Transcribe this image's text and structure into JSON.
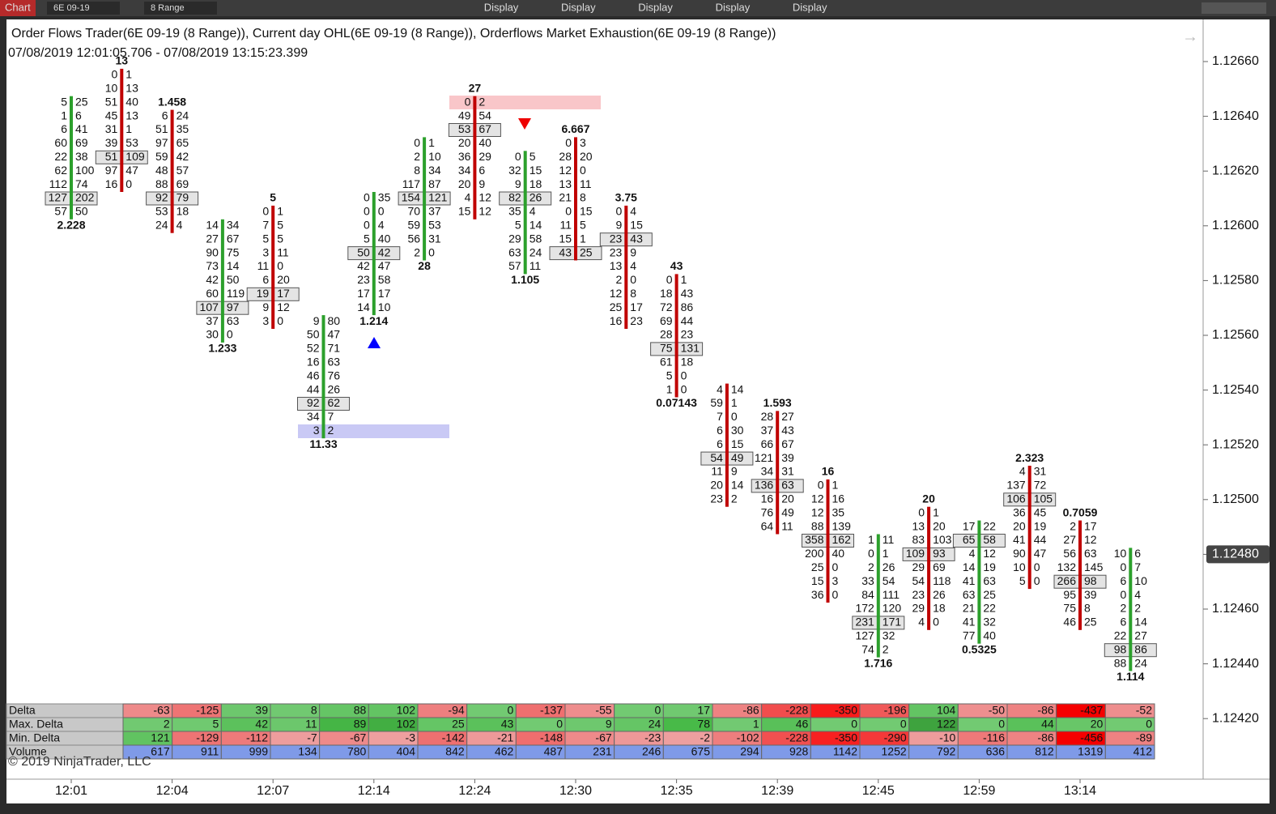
{
  "toolbar": {
    "app": "Chart",
    "instrument": "6E 09-19",
    "bar_type": "8 Range",
    "buttons": [
      "Display",
      "Display",
      "Display",
      "Display",
      "Display"
    ]
  },
  "header": {
    "title": "Order Flows Trader(6E 09-19 (8 Range)), Current day OHL(6E 09-19 (8 Range)),  Orderflows Market Exhaustion(6E 09-19 (8 Range))",
    "range": "07/08/2019 12:01:05.706 - 07/08/2019 13:15:23.399"
  },
  "chart_data": {
    "type": "footprint",
    "ylim": [
      1.124,
      1.1268
    ],
    "yticks": [
      {
        "value": 1.1266,
        "label": "1.12660"
      },
      {
        "value": 1.1264,
        "label": "1.12640"
      },
      {
        "value": 1.1262,
        "label": "1.12620"
      },
      {
        "value": 1.126,
        "label": "1.12600"
      },
      {
        "value": 1.1258,
        "label": "1.12580"
      },
      {
        "value": 1.1256,
        "label": "1.12560"
      },
      {
        "value": 1.1254,
        "label": "1.12540"
      },
      {
        "value": 1.1252,
        "label": "1.12520"
      },
      {
        "value": 1.125,
        "label": "1.12500"
      },
      {
        "value": 1.1248,
        "label": "1.12480"
      },
      {
        "value": 1.1246,
        "label": "1.12460"
      },
      {
        "value": 1.1244,
        "label": "1.12440"
      },
      {
        "value": 1.1242,
        "label": "1.12420"
      }
    ],
    "last_price": {
      "value": 1.1248,
      "label": "1.12480"
    },
    "categories": [
      "12:01",
      null,
      "12:04",
      null,
      "12:07",
      null,
      "12:14",
      null,
      "12:24",
      null,
      "12:30",
      null,
      "12:35",
      null,
      "12:39",
      null,
      "12:45",
      null,
      "12:59",
      null,
      "13:14",
      null
    ],
    "bars": [
      {
        "top_price": 1.12645,
        "color": "#2ca02c",
        "poc": 7,
        "bottom_label": "2.228",
        "rows": [
          [
            5,
            25
          ],
          [
            1,
            6
          ],
          [
            6,
            41
          ],
          [
            60,
            69
          ],
          [
            22,
            38
          ],
          [
            62,
            100
          ],
          [
            112,
            74
          ],
          [
            127,
            202
          ],
          [
            57,
            50
          ]
        ]
      },
      {
        "top_price": 1.12655,
        "color": "#c00000",
        "poc": 6,
        "top_label": "13",
        "rows": [
          [
            0,
            1
          ],
          [
            10,
            13
          ],
          [
            51,
            40
          ],
          [
            45,
            13
          ],
          [
            31,
            1
          ],
          [
            39,
            53
          ],
          [
            51,
            109
          ],
          [
            97,
            47
          ],
          [
            16,
            0
          ]
        ]
      },
      {
        "top_price": 1.1264,
        "color": "#c00000",
        "poc": 6,
        "top_label": "1.458",
        "rows": [
          [
            6,
            24
          ],
          [
            51,
            35
          ],
          [
            97,
            65
          ],
          [
            59,
            42
          ],
          [
            48,
            57
          ],
          [
            88,
            69
          ],
          [
            92,
            79
          ],
          [
            53,
            18
          ],
          [
            24,
            4
          ]
        ]
      },
      {
        "top_price": 1.126,
        "color": "#2ca02c",
        "poc": 6,
        "bottom_label": "1.233",
        "rows": [
          [
            14,
            34
          ],
          [
            27,
            67
          ],
          [
            90,
            75
          ],
          [
            73,
            14
          ],
          [
            42,
            50
          ],
          [
            60,
            119
          ],
          [
            107,
            97
          ],
          [
            37,
            63
          ],
          [
            30,
            0
          ]
        ]
      },
      {
        "top_price": 1.12605,
        "color": "#c00000",
        "poc": 6,
        "top_label": "5",
        "rows": [
          [
            0,
            1
          ],
          [
            7,
            5
          ],
          [
            5,
            5
          ],
          [
            3,
            11
          ],
          [
            11,
            0
          ],
          [
            6,
            20
          ],
          [
            19,
            17
          ],
          [
            9,
            12
          ],
          [
            3,
            0
          ]
        ]
      },
      {
        "top_price": 1.12565,
        "color": "#2ca02c",
        "poc": 6,
        "bottom_label": "11.33",
        "rows": [
          [
            9,
            80
          ],
          [
            50,
            47
          ],
          [
            52,
            71
          ],
          [
            16,
            63
          ],
          [
            46,
            76
          ],
          [
            44,
            26
          ],
          [
            92,
            62
          ],
          [
            34,
            7
          ],
          [
            3,
            2
          ]
        ]
      },
      {
        "top_price": 1.1261,
        "color": "#2ca02c",
        "poc": 4,
        "bottom_label": "1.214",
        "rows": [
          [
            0,
            35
          ],
          [
            0,
            0
          ],
          [
            0,
            4
          ],
          [
            5,
            40
          ],
          [
            50,
            42
          ],
          [
            42,
            47
          ],
          [
            23,
            58
          ],
          [
            17,
            17
          ],
          [
            14,
            10
          ]
        ]
      },
      {
        "top_price": 1.1263,
        "color": "#2ca02c",
        "poc": 4,
        "bottom_label": "28",
        "rows": [
          [
            0,
            1
          ],
          [
            2,
            10
          ],
          [
            8,
            34
          ],
          [
            117,
            87
          ],
          [
            154,
            121
          ],
          [
            70,
            37
          ],
          [
            59,
            53
          ],
          [
            56,
            31
          ],
          [
            2,
            0
          ]
        ]
      },
      {
        "top_price": 1.12645,
        "color": "#c00000",
        "poc": 2,
        "top_label": "27",
        "rows": [
          [
            0,
            2
          ],
          [
            49,
            54
          ],
          [
            53,
            67
          ],
          [
            20,
            40
          ],
          [
            36,
            29
          ],
          [
            34,
            6
          ],
          [
            20,
            9
          ],
          [
            4,
            12
          ],
          [
            15,
            12
          ]
        ]
      },
      {
        "top_price": 1.12625,
        "color": "#2ca02c",
        "poc": 3,
        "bottom_label": "1.105",
        "rows": [
          [
            0,
            5
          ],
          [
            32,
            15
          ],
          [
            9,
            18
          ],
          [
            82,
            26
          ],
          [
            35,
            4
          ],
          [
            5,
            14
          ],
          [
            29,
            58
          ],
          [
            63,
            24
          ],
          [
            57,
            11
          ]
        ]
      },
      {
        "top_price": 1.1263,
        "color": "#c00000",
        "poc": 8,
        "top_label": "6.667",
        "rows": [
          [
            0,
            3
          ],
          [
            28,
            20
          ],
          [
            12,
            0
          ],
          [
            13,
            11
          ],
          [
            21,
            8
          ],
          [
            0,
            15
          ],
          [
            11,
            5
          ],
          [
            15,
            1
          ],
          [
            43,
            25
          ]
        ]
      },
      {
        "top_price": 1.12605,
        "color": "#c00000",
        "poc": 2,
        "top_label": "3.75",
        "rows": [
          [
            0,
            4
          ],
          [
            9,
            15
          ],
          [
            23,
            43
          ],
          [
            23,
            9
          ],
          [
            13,
            4
          ],
          [
            2,
            0
          ],
          [
            12,
            8
          ],
          [
            25,
            17
          ],
          [
            16,
            23
          ]
        ]
      },
      {
        "top_price": 1.1258,
        "color": "#c00000",
        "poc": 5,
        "top_label": "43",
        "bottom_label": "0.07143",
        "rows": [
          [
            0,
            1
          ],
          [
            18,
            43
          ],
          [
            72,
            86
          ],
          [
            69,
            44
          ],
          [
            28,
            23
          ],
          [
            75,
            131
          ],
          [
            61,
            18
          ],
          [
            5,
            0
          ],
          [
            1,
            0
          ]
        ]
      },
      {
        "top_price": 1.1254,
        "color": "#c00000",
        "poc": 5,
        "rows": [
          [
            4,
            14
          ],
          [
            59,
            1
          ],
          [
            7,
            0
          ],
          [
            6,
            30
          ],
          [
            6,
            15
          ],
          [
            54,
            49
          ],
          [
            11,
            9
          ],
          [
            20,
            14
          ],
          [
            23,
            2
          ]
        ]
      },
      {
        "top_price": 1.1253,
        "color": "#c00000",
        "poc": 5,
        "top_label": "1.593",
        "rows": [
          [
            28,
            27
          ],
          [
            37,
            43
          ],
          [
            66,
            67
          ],
          [
            121,
            39
          ],
          [
            34,
            31
          ],
          [
            136,
            63
          ],
          [
            16,
            20
          ],
          [
            76,
            49
          ],
          [
            64,
            11
          ]
        ]
      },
      {
        "top_price": 1.12505,
        "color": "#c00000",
        "poc": 4,
        "top_label": "16",
        "rows": [
          [
            0,
            1
          ],
          [
            12,
            16
          ],
          [
            12,
            35
          ],
          [
            88,
            139
          ],
          [
            358,
            162
          ],
          [
            200,
            40
          ],
          [
            25,
            0
          ],
          [
            15,
            3
          ],
          [
            36,
            0
          ]
        ]
      },
      {
        "top_price": 1.12485,
        "color": "#2ca02c",
        "poc": 6,
        "bottom_label": "1.716",
        "rows": [
          [
            1,
            11
          ],
          [
            0,
            1
          ],
          [
            2,
            26
          ],
          [
            33,
            54
          ],
          [
            84,
            111
          ],
          [
            172,
            120
          ],
          [
            231,
            171
          ],
          [
            127,
            32
          ],
          [
            74,
            2
          ]
        ]
      },
      {
        "top_price": 1.12495,
        "color": "#c00000",
        "poc": 3,
        "top_label": "20",
        "rows": [
          [
            0,
            1
          ],
          [
            13,
            20
          ],
          [
            83,
            103
          ],
          [
            109,
            93
          ],
          [
            29,
            69
          ],
          [
            54,
            118
          ],
          [
            23,
            26
          ],
          [
            29,
            18
          ],
          [
            4,
            0
          ]
        ]
      },
      {
        "top_price": 1.1249,
        "color": "#2ca02c",
        "poc": 1,
        "bottom_label": "0.5325",
        "rows": [
          [
            17,
            22
          ],
          [
            65,
            58
          ],
          [
            4,
            12
          ],
          [
            14,
            19
          ],
          [
            41,
            63
          ],
          [
            63,
            25
          ],
          [
            21,
            22
          ],
          [
            41,
            32
          ],
          [
            77,
            40
          ]
        ]
      },
      {
        "top_price": 1.1251,
        "color": "#c00000",
        "poc": 2,
        "top_label": "2.323",
        "rows": [
          [
            4,
            31
          ],
          [
            137,
            72
          ],
          [
            106,
            105
          ],
          [
            36,
            45
          ],
          [
            20,
            19
          ],
          [
            41,
            44
          ],
          [
            90,
            47
          ],
          [
            10,
            0
          ],
          [
            5,
            0
          ]
        ]
      },
      {
        "top_price": 1.1249,
        "color": "#c00000",
        "poc": 4,
        "top_label": "0.7059",
        "rows": [
          [
            2,
            17
          ],
          [
            27,
            12
          ],
          [
            56,
            63
          ],
          [
            132,
            145
          ],
          [
            266,
            98
          ],
          [
            95,
            39
          ],
          [
            75,
            8
          ],
          [
            46,
            25
          ]
        ]
      },
      {
        "top_price": 1.1248,
        "color": "#2ca02c",
        "poc": 7,
        "bottom_label": "1.114",
        "rows": [
          [
            10,
            6
          ],
          [
            0,
            7
          ],
          [
            6,
            10
          ],
          [
            0,
            4
          ],
          [
            2,
            2
          ],
          [
            6,
            14
          ],
          [
            22,
            27
          ],
          [
            98,
            86
          ],
          [
            88,
            24
          ]
        ]
      }
    ]
  },
  "table": {
    "rows": [
      {
        "label": "Delta",
        "values": [
          -63,
          -125,
          39,
          8,
          88,
          102,
          -94,
          0,
          -137,
          -55,
          0,
          17,
          -86,
          -228,
          -350,
          -196,
          104,
          -50,
          -86,
          -437,
          -52
        ]
      },
      {
        "label": "Max. Delta",
        "values": [
          2,
          5,
          42,
          11,
          89,
          102,
          25,
          43,
          0,
          9,
          24,
          78,
          1,
          46,
          0,
          0,
          122,
          0,
          44,
          20,
          0
        ]
      },
      {
        "label": "Min. Delta",
        "values": [
          121,
          -129,
          -112,
          -7,
          -67,
          -3,
          -142,
          -21,
          -148,
          -67,
          -23,
          -2,
          -102,
          -228,
          -350,
          -290,
          -10,
          -116,
          -86,
          -456,
          -89
        ]
      },
      {
        "label": "Volume",
        "values": [
          617,
          911,
          999,
          134,
          780,
          404,
          842,
          462,
          487,
          231,
          246,
          675,
          294,
          928,
          1142,
          1252,
          792,
          636,
          812,
          1319,
          412
        ]
      }
    ]
  },
  "footer": {
    "copyright": "© 2019 NinjaTrader, LLC"
  }
}
